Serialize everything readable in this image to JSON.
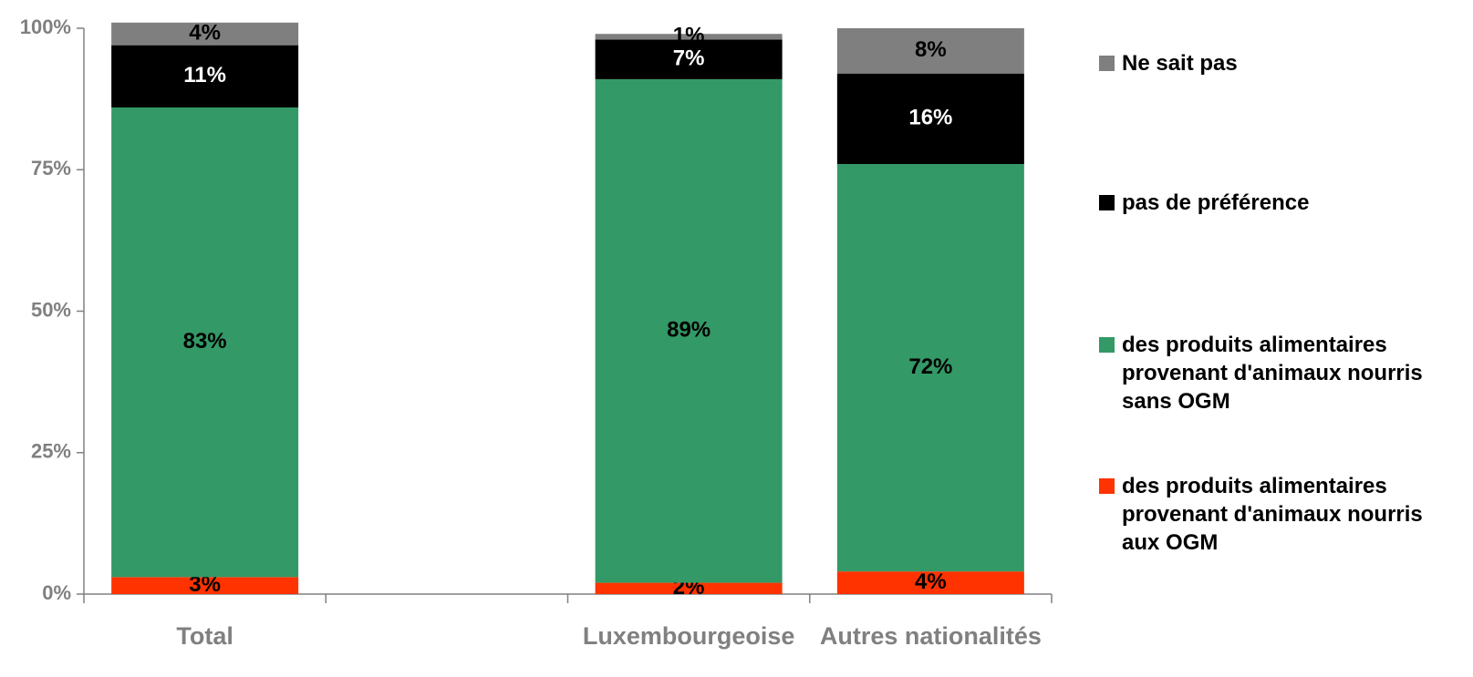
{
  "chart_data": {
    "type": "stacked_bar",
    "categories": [
      "Total",
      null,
      "Luxembourgeoise",
      "Autres nationalités"
    ],
    "series": [
      {
        "name": "des produits alimentaires provenant d'animaux nourris aux OGM",
        "color": "#ff3300",
        "values": [
          3,
          null,
          2,
          4
        ],
        "value_labels": [
          "3%",
          null,
          "2%",
          "4%"
        ]
      },
      {
        "name": "des produits alimentaires provenant d'animaux nourris sans OGM",
        "color": "#339966",
        "values": [
          83,
          null,
          89,
          72
        ],
        "value_labels": [
          "83%",
          null,
          "89%",
          "72%"
        ]
      },
      {
        "name": "pas de préférence",
        "color": "#000000",
        "values": [
          11,
          null,
          7,
          16
        ],
        "value_labels": [
          "11%",
          null,
          "7%",
          "16%"
        ]
      },
      {
        "name": "Ne sait pas",
        "color": "#7f7f7f",
        "values": [
          4,
          null,
          1,
          8
        ],
        "value_labels": [
          "4%",
          null,
          "1%",
          "8%"
        ]
      }
    ],
    "ylim": [
      0,
      100
    ],
    "yticks": [
      {
        "value": 0,
        "label": "0%"
      },
      {
        "value": 25,
        "label": "25%"
      },
      {
        "value": 50,
        "label": "50%"
      },
      {
        "value": 75,
        "label": "75%"
      },
      {
        "value": 100,
        "label": "100%"
      }
    ],
    "legend": "right"
  }
}
